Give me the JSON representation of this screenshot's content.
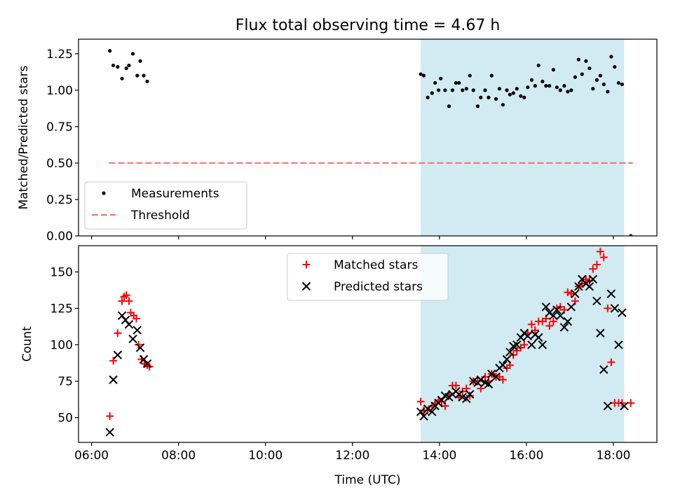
{
  "chart_data": [
    {
      "type": "scatter",
      "title": "Flux total observing time = 4.67 h",
      "ylabel": "Matched/Predicted stars",
      "xlabel": "",
      "x_unit": "hours UTC",
      "xlim": [
        5.7,
        19.0
      ],
      "ylim": [
        0.0,
        1.35
      ],
      "yticks": [
        0.0,
        0.25,
        0.5,
        0.75,
        1.0,
        1.25
      ],
      "ytick_labels": [
        "0.00",
        "0.25",
        "0.50",
        "0.75",
        "1.00",
        "1.25"
      ],
      "highlight_span": [
        13.57,
        18.25
      ],
      "highlight_color": "#add8e6",
      "threshold": {
        "value": 0.5,
        "x": [
          6.4,
          18.45
        ],
        "color": "#ff6a6a",
        "style": "dashed"
      },
      "legend": {
        "position": "lower left",
        "entries": [
          "Measurements",
          "Threshold"
        ]
      },
      "series": [
        {
          "name": "Measurements",
          "marker": "dot",
          "color": "#000000",
          "x": [
            6.42,
            6.5,
            6.6,
            6.7,
            6.8,
            6.86,
            6.95,
            7.05,
            7.12,
            7.2,
            7.28,
            13.57,
            13.64,
            13.73,
            13.83,
            13.9,
            13.98,
            14.03,
            14.13,
            14.22,
            14.3,
            14.38,
            14.45,
            14.53,
            14.62,
            14.7,
            14.78,
            14.88,
            14.95,
            15.05,
            15.13,
            15.2,
            15.3,
            15.38,
            15.46,
            15.55,
            15.62,
            15.7,
            15.78,
            15.87,
            15.95,
            16.03,
            16.12,
            16.2,
            16.28,
            16.37,
            16.45,
            16.53,
            16.62,
            16.7,
            16.78,
            16.87,
            16.95,
            17.03,
            17.12,
            17.2,
            17.28,
            17.37,
            17.45,
            17.53,
            17.62,
            17.7,
            17.78,
            17.87,
            17.95,
            18.03,
            18.12,
            18.2,
            18.4
          ],
          "y": [
            1.27,
            1.17,
            1.16,
            1.08,
            1.15,
            1.17,
            1.25,
            1.1,
            1.2,
            1.1,
            1.06,
            1.11,
            1.1,
            0.95,
            0.98,
            1.05,
            1.0,
            1.08,
            1.0,
            0.89,
            1.0,
            1.05,
            1.05,
            1.0,
            1.01,
            1.1,
            1.0,
            0.89,
            0.95,
            1.0,
            0.95,
            1.1,
            0.94,
            1.01,
            0.9,
            1.0,
            0.97,
            0.98,
            1.01,
            0.96,
            0.95,
            1.02,
            1.07,
            1.03,
            1.17,
            1.06,
            1.03,
            1.03,
            1.14,
            1.02,
            1.0,
            1.03,
            0.99,
            1.0,
            1.09,
            1.21,
            1.11,
            1.2,
            1.15,
            1.01,
            1.07,
            1.1,
            1.04,
            0.99,
            1.23,
            1.16,
            1.05,
            1.04,
            0.0
          ]
        }
      ]
    },
    {
      "type": "scatter",
      "title": "",
      "ylabel": "Count",
      "xlabel": "Time (UTC)",
      "x_unit": "hours UTC",
      "xlim": [
        5.7,
        19.0
      ],
      "ylim": [
        33,
        168
      ],
      "yticks": [
        50,
        75,
        100,
        125,
        150
      ],
      "ytick_labels": [
        "50",
        "75",
        "100",
        "125",
        "150"
      ],
      "xticks": [
        6,
        8,
        10,
        12,
        14,
        16,
        18
      ],
      "xtick_labels": [
        "06:00",
        "08:00",
        "10:00",
        "12:00",
        "14:00",
        "16:00",
        "18:00"
      ],
      "highlight_span": [
        13.57,
        18.25
      ],
      "highlight_color": "#add8e6",
      "legend": {
        "position": "upper center",
        "entries": [
          "Matched stars",
          "Predicted stars"
        ]
      },
      "series": [
        {
          "name": "Matched stars",
          "marker": "plus",
          "color": "#ff0000",
          "x": [
            6.42,
            6.5,
            6.6,
            6.7,
            6.75,
            6.8,
            6.86,
            6.9,
            6.97,
            7.03,
            7.08,
            7.15,
            7.22,
            7.28,
            7.33,
            13.57,
            13.64,
            13.73,
            13.83,
            13.9,
            13.98,
            14.05,
            14.13,
            14.22,
            14.3,
            14.38,
            14.45,
            14.53,
            14.62,
            14.7,
            14.78,
            14.88,
            14.95,
            15.05,
            15.13,
            15.2,
            15.3,
            15.38,
            15.46,
            15.55,
            15.62,
            15.7,
            15.78,
            15.87,
            15.95,
            16.03,
            16.12,
            16.2,
            16.28,
            16.37,
            16.45,
            16.53,
            16.62,
            16.7,
            16.78,
            16.87,
            16.95,
            17.03,
            17.12,
            17.2,
            17.28,
            17.37,
            17.45,
            17.53,
            17.62,
            17.7,
            17.78,
            17.87,
            17.95,
            18.03,
            18.12,
            18.2,
            18.4
          ],
          "y": [
            51,
            89,
            108,
            130,
            133,
            134,
            130,
            122,
            120,
            118,
            100,
            90,
            87,
            86,
            85,
            61,
            55,
            55,
            58,
            60,
            62,
            61,
            58,
            66,
            72,
            72,
            64,
            68,
            70,
            65,
            75,
            75,
            70,
            78,
            75,
            80,
            78,
            78,
            76,
            84,
            86,
            93,
            96,
            98,
            100,
            108,
            114,
            110,
            116,
            116,
            118,
            113,
            116,
            125,
            126,
            124,
            136,
            135,
            130,
            140,
            142,
            145,
            144,
            152,
            155,
            164,
            160,
            125,
            88,
            60,
            60,
            60,
            60
          ]
        },
        {
          "name": "Predicted stars",
          "marker": "x",
          "color": "#000000",
          "x": [
            6.42,
            6.5,
            6.6,
            6.7,
            6.78,
            6.86,
            6.95,
            7.05,
            7.12,
            7.2,
            7.28,
            13.57,
            13.64,
            13.73,
            13.83,
            13.9,
            13.98,
            14.05,
            14.13,
            14.22,
            14.3,
            14.38,
            14.45,
            14.53,
            14.62,
            14.7,
            14.78,
            14.88,
            14.95,
            15.05,
            15.13,
            15.2,
            15.3,
            15.38,
            15.46,
            15.55,
            15.62,
            15.7,
            15.78,
            15.87,
            15.95,
            16.03,
            16.12,
            16.2,
            16.28,
            16.37,
            16.45,
            16.53,
            16.62,
            16.7,
            16.78,
            16.87,
            16.95,
            17.03,
            17.12,
            17.2,
            17.28,
            17.37,
            17.45,
            17.53,
            17.62,
            17.7,
            17.78,
            17.87,
            17.95,
            18.03,
            18.12,
            18.2,
            18.25
          ],
          "y": [
            40,
            76,
            93,
            120,
            117,
            114,
            104,
            110,
            98,
            90,
            87,
            54,
            51,
            56,
            54,
            58,
            60,
            62,
            65,
            64,
            66,
            68,
            66,
            64,
            63,
            66,
            75,
            74,
            76,
            74,
            73,
            80,
            78,
            84,
            86,
            90,
            95,
            99,
            100,
            105,
            108,
            106,
            100,
            107,
            105,
            100,
            126,
            122,
            120,
            124,
            120,
            112,
            116,
            126,
            135,
            140,
            145,
            142,
            140,
            145,
            130,
            108,
            83,
            58,
            135,
            125,
            100,
            122,
            58
          ]
        }
      ]
    }
  ]
}
